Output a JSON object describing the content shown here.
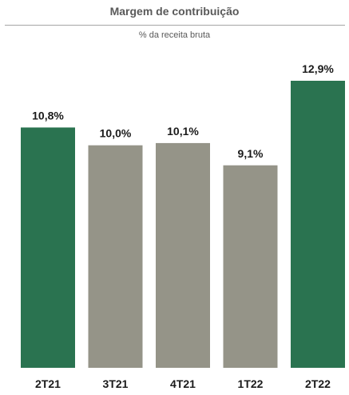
{
  "chart_data": {
    "type": "bar",
    "title": "Margem de contribuição",
    "subtitle": "% da receita bruta",
    "categories": [
      "2T21",
      "3T21",
      "4T21",
      "1T22",
      "2T22"
    ],
    "values": [
      10.8,
      10.0,
      10.1,
      9.1,
      12.9
    ],
    "data_labels": [
      "10,8%",
      "10,0%",
      "10,1%",
      "9,1%",
      "12,9%"
    ],
    "colors": [
      "#2a7350",
      "#959488",
      "#959488",
      "#959488",
      "#2a7350"
    ],
    "xlabel": "",
    "ylabel": "",
    "ylim": [
      0,
      12.9
    ],
    "grid": false,
    "legend": "none"
  }
}
